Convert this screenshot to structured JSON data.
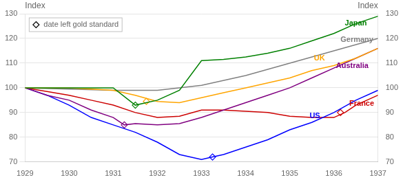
{
  "chart_data": {
    "type": "line",
    "ylabel": "Index",
    "y2label": "Index",
    "xlim": [
      1929,
      1937
    ],
    "xticks": [
      1929,
      1930,
      1931,
      1932,
      1933,
      1934,
      1935,
      1936,
      1937
    ],
    "ylim": [
      70,
      130
    ],
    "yticks": [
      70,
      80,
      90,
      100,
      110,
      120,
      130
    ],
    "y2lim": [
      70,
      130
    ],
    "y2ticks": [
      70,
      80,
      90,
      100,
      110,
      120,
      130
    ],
    "grid": "y",
    "legend": "upper left",
    "series": [
      {
        "name": "Japan",
        "color": "#008000",
        "x": [
          1929,
          1929.5,
          1930,
          1930.5,
          1931,
          1931.5,
          1932,
          1932.5,
          1933,
          1933.5,
          1934,
          1934.5,
          1935,
          1935.5,
          1936,
          1936.5,
          1937
        ],
        "values": [
          100,
          100,
          100,
          100,
          100,
          93,
          95,
          99,
          111,
          111.5,
          112.5,
          114,
          116,
          119,
          122,
          126,
          129
        ]
      },
      {
        "name": "UK",
        "color": "#FFA500",
        "x": [
          1929,
          1929.5,
          1930,
          1930.5,
          1931,
          1931.5,
          1932,
          1932.5,
          1933,
          1933.5,
          1934,
          1934.5,
          1935,
          1935.5,
          1936,
          1936.5,
          1937
        ],
        "values": [
          100,
          100,
          100,
          99.5,
          99,
          97,
          94.5,
          94,
          96,
          98,
          100,
          102,
          104,
          107,
          109,
          112,
          116
        ]
      },
      {
        "name": "Australia",
        "color": "#800080",
        "x": [
          1929,
          1929.5,
          1930,
          1930.5,
          1931,
          1931.25,
          1931.5,
          1932,
          1932.5,
          1933,
          1933.5,
          1934,
          1934.5,
          1935,
          1935.5,
          1936,
          1936.5,
          1937
        ],
        "values": [
          100,
          97,
          95,
          91,
          88,
          85,
          85.5,
          85,
          85.5,
          88,
          91,
          94,
          97,
          100,
          104,
          108,
          112,
          116
        ]
      },
      {
        "name": "Germany",
        "color": "#808080",
        "x": [
          1929,
          1930,
          1931,
          1932,
          1933,
          1934,
          1935,
          1936,
          1937
        ],
        "values": [
          100,
          99.5,
          99,
          99,
          101,
          105,
          110,
          115,
          120
        ]
      },
      {
        "name": "US",
        "color": "#0000FF",
        "x": [
          1929,
          1929.5,
          1930,
          1930.5,
          1931,
          1931.5,
          1932,
          1932.5,
          1933,
          1933.25,
          1933.5,
          1934,
          1934.5,
          1935,
          1935.5,
          1936,
          1936.5,
          1937
        ],
        "values": [
          100,
          97,
          93,
          88,
          85,
          82,
          78,
          73,
          71,
          72,
          73,
          76,
          79,
          83,
          86,
          90,
          95,
          99
        ]
      },
      {
        "name": "France",
        "color": "#CC0000",
        "x": [
          1929,
          1929.5,
          1930,
          1930.5,
          1931,
          1931.5,
          1932,
          1932.5,
          1933,
          1933.5,
          1934,
          1934.5,
          1935,
          1935.5,
          1936,
          1936.25,
          1936.5,
          1937
        ],
        "values": [
          100,
          98.5,
          97,
          95,
          93,
          90,
          88,
          88.5,
          91,
          91,
          90.5,
          90,
          88.5,
          88,
          88,
          90,
          93,
          97
        ]
      }
    ],
    "markers": {
      "label": "date left gold standard",
      "marker": "diamond",
      "points": [
        {
          "series": "Japan",
          "x": 1931.5,
          "y": 93,
          "color": "#008000"
        },
        {
          "series": "UK",
          "x": 1931.75,
          "y": 94.5,
          "color": "#FFA500"
        },
        {
          "series": "Australia",
          "x": 1931.25,
          "y": 85,
          "color": "#800080"
        },
        {
          "series": "US",
          "x": 1933.25,
          "y": 72,
          "color": "#0000FF"
        },
        {
          "series": "France",
          "x": 1936.15,
          "y": 90,
          "color": "#CC0000"
        }
      ]
    },
    "annotations": [
      {
        "text": "Japan",
        "x": 1936.25,
        "y": 126,
        "color": "#008000"
      },
      {
        "text": "UK",
        "x": 1935.55,
        "y": 112,
        "color": "#FFA500"
      },
      {
        "text": "Australia",
        "x": 1936.05,
        "y": 109,
        "color": "#800080"
      },
      {
        "text": "Germany",
        "x": 1936.15,
        "y": 119.5,
        "color": "#808080"
      },
      {
        "text": "US",
        "x": 1935.45,
        "y": 88.5,
        "color": "#0000FF"
      },
      {
        "text": "France",
        "x": 1936.35,
        "y": 93.5,
        "color": "#CC0000"
      }
    ]
  }
}
